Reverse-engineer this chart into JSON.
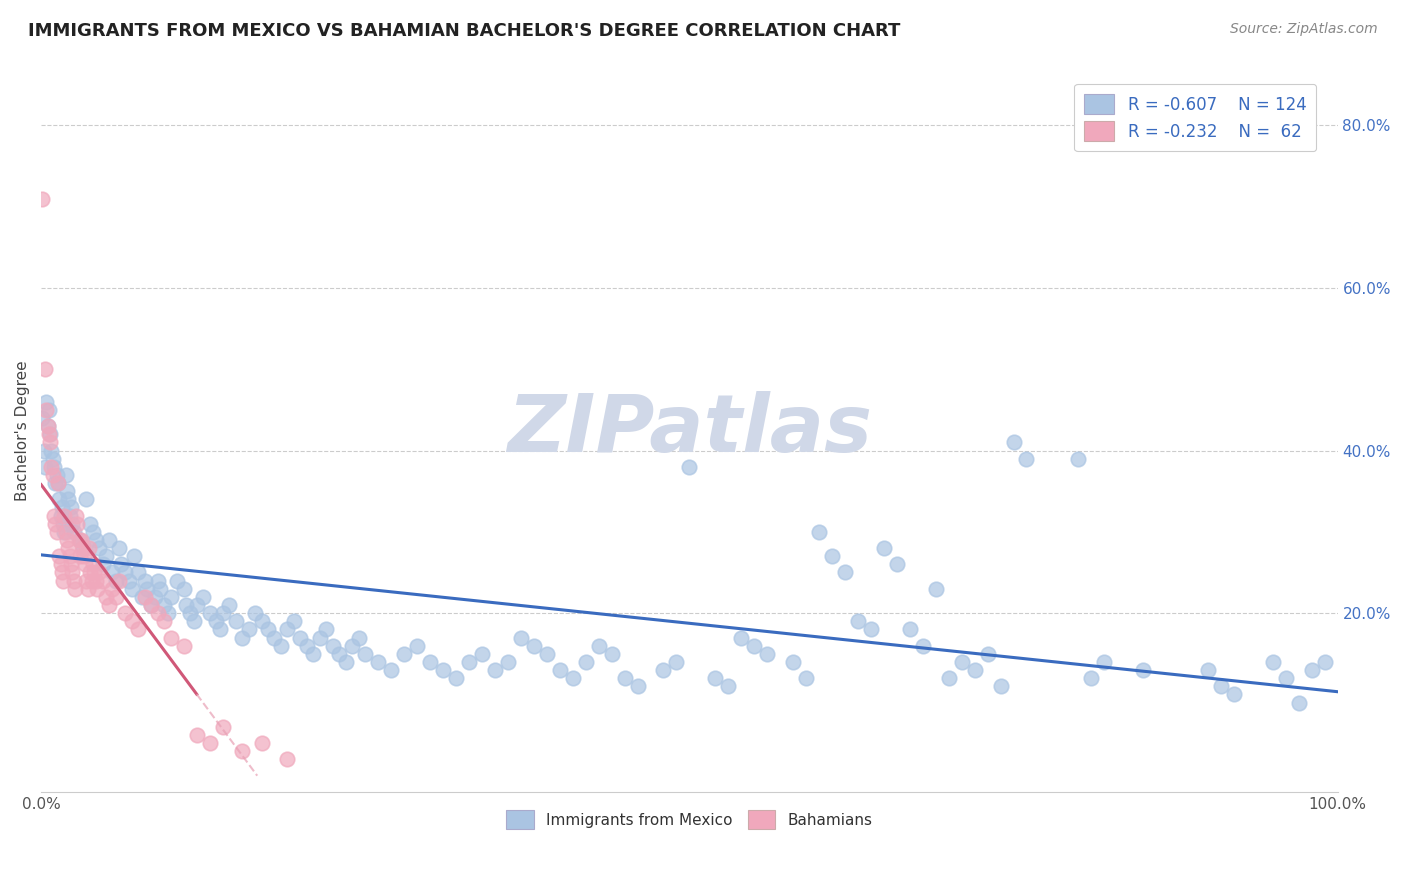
{
  "title": "IMMIGRANTS FROM MEXICO VS BAHAMIAN BACHELOR'S DEGREE CORRELATION CHART",
  "source": "Source: ZipAtlas.com",
  "ylabel": "Bachelor's Degree",
  "xlim": [
    0.0,
    1.0
  ],
  "ylim": [
    -0.02,
    0.87
  ],
  "x_ticks": [
    0.0,
    1.0
  ],
  "x_tick_labels": [
    "0.0%",
    "100.0%"
  ],
  "y_ticks": [
    0.2,
    0.4,
    0.6,
    0.8
  ],
  "y_tick_labels": [
    "20.0%",
    "40.0%",
    "60.0%",
    "80.0%"
  ],
  "blue_color": "#aac4e2",
  "pink_color": "#f0a8bc",
  "blue_line_color": "#3a6bbf",
  "pink_line_color": "#d05878",
  "pink_line_dashed_color": "#e8a0b4",
  "watermark": "ZIPatlas",
  "blue_scatter": [
    [
      0.001,
      0.44
    ],
    [
      0.002,
      0.4
    ],
    [
      0.003,
      0.38
    ],
    [
      0.004,
      0.46
    ],
    [
      0.005,
      0.43
    ],
    [
      0.006,
      0.45
    ],
    [
      0.007,
      0.42
    ],
    [
      0.008,
      0.4
    ],
    [
      0.009,
      0.39
    ],
    [
      0.01,
      0.38
    ],
    [
      0.011,
      0.36
    ],
    [
      0.012,
      0.37
    ],
    [
      0.013,
      0.36
    ],
    [
      0.014,
      0.34
    ],
    [
      0.015,
      0.32
    ],
    [
      0.016,
      0.33
    ],
    [
      0.017,
      0.31
    ],
    [
      0.018,
      0.3
    ],
    [
      0.019,
      0.37
    ],
    [
      0.02,
      0.35
    ],
    [
      0.021,
      0.34
    ],
    [
      0.022,
      0.32
    ],
    [
      0.023,
      0.33
    ],
    [
      0.024,
      0.31
    ],
    [
      0.025,
      0.3
    ],
    [
      0.03,
      0.29
    ],
    [
      0.032,
      0.28
    ],
    [
      0.035,
      0.34
    ],
    [
      0.038,
      0.31
    ],
    [
      0.04,
      0.3
    ],
    [
      0.042,
      0.29
    ],
    [
      0.045,
      0.28
    ],
    [
      0.048,
      0.26
    ],
    [
      0.05,
      0.27
    ],
    [
      0.052,
      0.29
    ],
    [
      0.055,
      0.25
    ],
    [
      0.058,
      0.24
    ],
    [
      0.06,
      0.28
    ],
    [
      0.062,
      0.26
    ],
    [
      0.065,
      0.25
    ],
    [
      0.068,
      0.24
    ],
    [
      0.07,
      0.23
    ],
    [
      0.072,
      0.27
    ],
    [
      0.075,
      0.25
    ],
    [
      0.078,
      0.22
    ],
    [
      0.08,
      0.24
    ],
    [
      0.082,
      0.23
    ],
    [
      0.085,
      0.21
    ],
    [
      0.088,
      0.22
    ],
    [
      0.09,
      0.24
    ],
    [
      0.092,
      0.23
    ],
    [
      0.095,
      0.21
    ],
    [
      0.098,
      0.2
    ],
    [
      0.1,
      0.22
    ],
    [
      0.105,
      0.24
    ],
    [
      0.11,
      0.23
    ],
    [
      0.112,
      0.21
    ],
    [
      0.115,
      0.2
    ],
    [
      0.118,
      0.19
    ],
    [
      0.12,
      0.21
    ],
    [
      0.125,
      0.22
    ],
    [
      0.13,
      0.2
    ],
    [
      0.135,
      0.19
    ],
    [
      0.138,
      0.18
    ],
    [
      0.14,
      0.2
    ],
    [
      0.145,
      0.21
    ],
    [
      0.15,
      0.19
    ],
    [
      0.155,
      0.17
    ],
    [
      0.16,
      0.18
    ],
    [
      0.165,
      0.2
    ],
    [
      0.17,
      0.19
    ],
    [
      0.175,
      0.18
    ],
    [
      0.18,
      0.17
    ],
    [
      0.185,
      0.16
    ],
    [
      0.19,
      0.18
    ],
    [
      0.195,
      0.19
    ],
    [
      0.2,
      0.17
    ],
    [
      0.205,
      0.16
    ],
    [
      0.21,
      0.15
    ],
    [
      0.215,
      0.17
    ],
    [
      0.22,
      0.18
    ],
    [
      0.225,
      0.16
    ],
    [
      0.23,
      0.15
    ],
    [
      0.235,
      0.14
    ],
    [
      0.24,
      0.16
    ],
    [
      0.245,
      0.17
    ],
    [
      0.25,
      0.15
    ],
    [
      0.26,
      0.14
    ],
    [
      0.27,
      0.13
    ],
    [
      0.28,
      0.15
    ],
    [
      0.29,
      0.16
    ],
    [
      0.3,
      0.14
    ],
    [
      0.31,
      0.13
    ],
    [
      0.32,
      0.12
    ],
    [
      0.33,
      0.14
    ],
    [
      0.34,
      0.15
    ],
    [
      0.35,
      0.13
    ],
    [
      0.36,
      0.14
    ],
    [
      0.37,
      0.17
    ],
    [
      0.38,
      0.16
    ],
    [
      0.39,
      0.15
    ],
    [
      0.4,
      0.13
    ],
    [
      0.41,
      0.12
    ],
    [
      0.42,
      0.14
    ],
    [
      0.43,
      0.16
    ],
    [
      0.44,
      0.15
    ],
    [
      0.45,
      0.12
    ],
    [
      0.46,
      0.11
    ],
    [
      0.48,
      0.13
    ],
    [
      0.49,
      0.14
    ],
    [
      0.5,
      0.38
    ],
    [
      0.52,
      0.12
    ],
    [
      0.53,
      0.11
    ],
    [
      0.54,
      0.17
    ],
    [
      0.55,
      0.16
    ],
    [
      0.56,
      0.15
    ],
    [
      0.58,
      0.14
    ],
    [
      0.59,
      0.12
    ],
    [
      0.6,
      0.3
    ],
    [
      0.61,
      0.27
    ],
    [
      0.62,
      0.25
    ],
    [
      0.63,
      0.19
    ],
    [
      0.64,
      0.18
    ],
    [
      0.65,
      0.28
    ],
    [
      0.66,
      0.26
    ],
    [
      0.67,
      0.18
    ],
    [
      0.68,
      0.16
    ],
    [
      0.69,
      0.23
    ],
    [
      0.7,
      0.12
    ],
    [
      0.71,
      0.14
    ],
    [
      0.72,
      0.13
    ],
    [
      0.73,
      0.15
    ],
    [
      0.74,
      0.11
    ],
    [
      0.75,
      0.41
    ],
    [
      0.76,
      0.39
    ],
    [
      0.8,
      0.39
    ],
    [
      0.81,
      0.12
    ],
    [
      0.82,
      0.14
    ],
    [
      0.85,
      0.13
    ],
    [
      0.9,
      0.13
    ],
    [
      0.91,
      0.11
    ],
    [
      0.92,
      0.1
    ],
    [
      0.95,
      0.14
    ],
    [
      0.96,
      0.12
    ],
    [
      0.97,
      0.09
    ],
    [
      0.98,
      0.13
    ],
    [
      0.99,
      0.14
    ]
  ],
  "pink_scatter": [
    [
      0.001,
      0.71
    ],
    [
      0.003,
      0.5
    ],
    [
      0.004,
      0.45
    ],
    [
      0.005,
      0.43
    ],
    [
      0.006,
      0.42
    ],
    [
      0.007,
      0.41
    ],
    [
      0.008,
      0.38
    ],
    [
      0.009,
      0.37
    ],
    [
      0.01,
      0.32
    ],
    [
      0.011,
      0.31
    ],
    [
      0.012,
      0.3
    ],
    [
      0.013,
      0.36
    ],
    [
      0.014,
      0.27
    ],
    [
      0.015,
      0.26
    ],
    [
      0.016,
      0.25
    ],
    [
      0.017,
      0.24
    ],
    [
      0.018,
      0.32
    ],
    [
      0.019,
      0.3
    ],
    [
      0.02,
      0.29
    ],
    [
      0.021,
      0.28
    ],
    [
      0.022,
      0.27
    ],
    [
      0.023,
      0.26
    ],
    [
      0.024,
      0.25
    ],
    [
      0.025,
      0.24
    ],
    [
      0.026,
      0.23
    ],
    [
      0.027,
      0.32
    ],
    [
      0.028,
      0.31
    ],
    [
      0.029,
      0.29
    ],
    [
      0.03,
      0.27
    ],
    [
      0.031,
      0.29
    ],
    [
      0.032,
      0.28
    ],
    [
      0.033,
      0.27
    ],
    [
      0.034,
      0.26
    ],
    [
      0.035,
      0.24
    ],
    [
      0.036,
      0.23
    ],
    [
      0.037,
      0.28
    ],
    [
      0.038,
      0.25
    ],
    [
      0.039,
      0.24
    ],
    [
      0.04,
      0.26
    ],
    [
      0.041,
      0.25
    ],
    [
      0.042,
      0.24
    ],
    [
      0.043,
      0.23
    ],
    [
      0.045,
      0.25
    ],
    [
      0.048,
      0.24
    ],
    [
      0.05,
      0.22
    ],
    [
      0.052,
      0.21
    ],
    [
      0.055,
      0.23
    ],
    [
      0.058,
      0.22
    ],
    [
      0.06,
      0.24
    ],
    [
      0.065,
      0.2
    ],
    [
      0.07,
      0.19
    ],
    [
      0.075,
      0.18
    ],
    [
      0.08,
      0.22
    ],
    [
      0.085,
      0.21
    ],
    [
      0.09,
      0.2
    ],
    [
      0.095,
      0.19
    ],
    [
      0.1,
      0.17
    ],
    [
      0.11,
      0.16
    ],
    [
      0.12,
      0.05
    ],
    [
      0.13,
      0.04
    ],
    [
      0.14,
      0.06
    ],
    [
      0.155,
      0.03
    ],
    [
      0.17,
      0.04
    ],
    [
      0.19,
      0.02
    ]
  ]
}
